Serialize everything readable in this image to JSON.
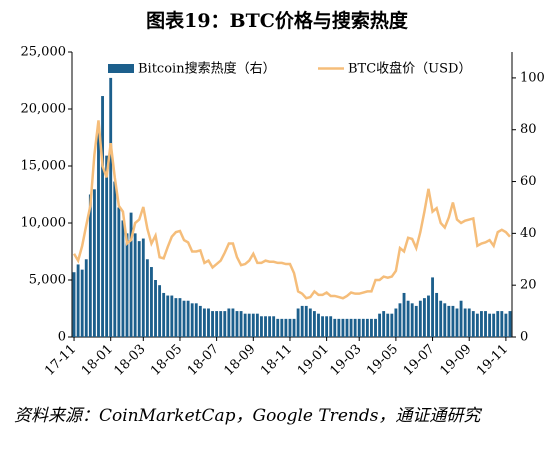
{
  "chart_data": {
    "type": "combo",
    "title": "图表19：BTC价格与搜索热度",
    "source": "资料来源：CoinMarketCap，Google Trends，通证通研究",
    "categories": [
      "17-11",
      null,
      null,
      null,
      null,
      null,
      null,
      null,
      null,
      "18-01",
      null,
      null,
      null,
      null,
      null,
      null,
      null,
      "18-03",
      null,
      null,
      null,
      null,
      null,
      null,
      null,
      null,
      "18-05",
      null,
      null,
      null,
      null,
      null,
      null,
      null,
      null,
      "18-07",
      null,
      null,
      null,
      null,
      null,
      null,
      null,
      null,
      "18-09",
      null,
      null,
      null,
      null,
      null,
      null,
      null,
      null,
      "18-11",
      null,
      null,
      null,
      null,
      null,
      null,
      null,
      null,
      "19-01",
      null,
      null,
      null,
      null,
      null,
      null,
      null,
      "19-03",
      null,
      null,
      null,
      null,
      null,
      null,
      null,
      null,
      "19-05",
      null,
      null,
      null,
      null,
      null,
      null,
      null,
      null,
      "19-07",
      null,
      null,
      null,
      null,
      null,
      null,
      null,
      null,
      "19-09",
      null,
      null,
      null,
      null,
      null,
      null,
      null,
      null,
      "19-11",
      null
    ],
    "series": [
      {
        "name": "Bitcoin搜索热度（右）",
        "type": "bar",
        "axis": "y2",
        "color": "#1c5f8c",
        "values": [
          25,
          28,
          26,
          30,
          55,
          57,
          80,
          93,
          70,
          100,
          60,
          50,
          45,
          40,
          48,
          40,
          37,
          38,
          30,
          27,
          22,
          20,
          17,
          16,
          16,
          15,
          15,
          14,
          14,
          13,
          13,
          12,
          11,
          11,
          10,
          10,
          10,
          10,
          11,
          11,
          10,
          10,
          9,
          9,
          9,
          9,
          8,
          8,
          8,
          8,
          7,
          7,
          7,
          7,
          7,
          11,
          12,
          12,
          11,
          10,
          9,
          8,
          8,
          8,
          7,
          7,
          7,
          7,
          7,
          7,
          7,
          7,
          7,
          7,
          7,
          9,
          10,
          9,
          9,
          11,
          13,
          17,
          14,
          13,
          12,
          14,
          15,
          16,
          23,
          17,
          14,
          13,
          12,
          12,
          11,
          14,
          11,
          11,
          10,
          9,
          10,
          10,
          9,
          9,
          10,
          10,
          9,
          10
        ]
      },
      {
        "name": "BTC收盘价（USD）",
        "type": "line",
        "color": "#f5bd7a",
        "values": [
          7300,
          6700,
          8000,
          9800,
          11500,
          16000,
          19000,
          15000,
          14000,
          17000,
          14000,
          11500,
          11000,
          8200,
          8500,
          10000,
          10300,
          11400,
          9500,
          8200,
          8900,
          7000,
          6900,
          7900,
          8800,
          9200,
          9300,
          8500,
          8300,
          7500,
          7500,
          7600,
          6500,
          6700,
          6100,
          6400,
          6700,
          7400,
          8200,
          8200,
          7000,
          6300,
          6400,
          6700,
          7300,
          6500,
          6500,
          6700,
          6600,
          6600,
          6500,
          6500,
          6400,
          6400,
          5600,
          4000,
          3800,
          3400,
          3500,
          4000,
          3700,
          3700,
          3900,
          3600,
          3600,
          3500,
          3400,
          3600,
          3900,
          3800,
          3800,
          3900,
          4000,
          4000,
          5000,
          5000,
          5300,
          5200,
          5300,
          5800,
          7800,
          7500,
          8700,
          8600,
          7800,
          9200,
          11000,
          13000,
          11000,
          11300,
          10000,
          9600,
          10500,
          11800,
          10300,
          10000,
          10200,
          10300,
          10400,
          8000,
          8200,
          8300,
          8500,
          8000,
          9200,
          9400,
          9200,
          8800
        ]
      }
    ],
    "ylim": [
      0,
      25000
    ],
    "yticks": [
      0,
      {
        "value": 5000,
        "label": "5,000"
      },
      {
        "value": 10000,
        "label": "10,000"
      },
      {
        "value": 15000,
        "label": "15,000"
      },
      {
        "value": 20000,
        "label": "20,000"
      },
      {
        "value": 25000,
        "label": "25,000"
      }
    ],
    "y2lim": [
      0,
      110
    ],
    "y2ticks": [
      0,
      20,
      40,
      60,
      80,
      100
    ]
  }
}
